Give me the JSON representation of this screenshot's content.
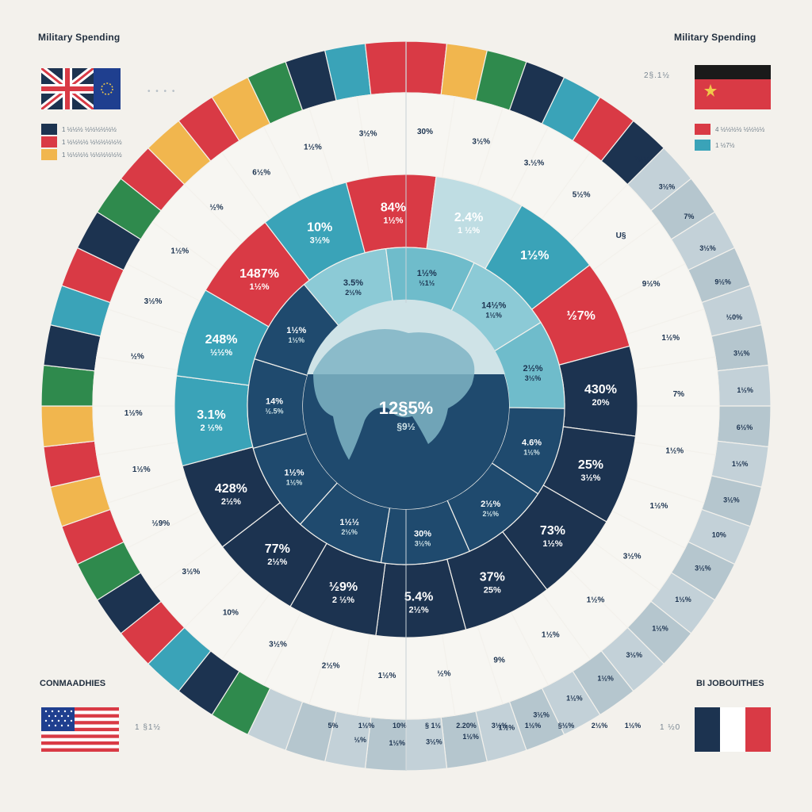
{
  "corners": {
    "title_left": "Military Spending",
    "title_right": "Military Spending",
    "year_right": "2§.1½",
    "caption_bottom_left": "CONMAADHIES",
    "caption_bottom_right": "BI JOBOUITHES",
    "value_bottom_left": "1 §1½",
    "value_bottom_right": "1 ½0",
    "legend_left": [
      "1 ½½½ ½½½½½½",
      "1 ½½½½ ½½½½½½",
      "1 ½½½½ ½½½½½½"
    ],
    "legend_right": [
      "4 ½½½½ ½½½½",
      "1 ½7½"
    ]
  },
  "colors": {
    "navy": "#1c3350",
    "teal": "#3aa3b8",
    "red": "#d93a45",
    "light_teal": "#bfdde3",
    "gray_blue": "#b9cbd3",
    "yellow": "#f1b64e",
    "green": "#2f8a4d",
    "orange": "#e86b3c"
  },
  "chart_data": {
    "type": "pie",
    "title": "",
    "center": {
      "value": "12§5%",
      "sub": "§9½"
    },
    "inner_ring": [
      {
        "label": "3.5%",
        "sub": "2½%"
      },
      {
        "label": "1½%",
        "sub": "½1½"
      },
      {
        "label": "14½%",
        "sub": "1½%"
      },
      {
        "label": "2½%",
        "sub": "3½%"
      },
      {
        "label": "4.6%",
        "sub": "1½%"
      },
      {
        "label": "2½%",
        "sub": "2½%"
      },
      {
        "label": "30%",
        "sub": "3½%"
      },
      {
        "label": "1½½",
        "sub": "2½%"
      },
      {
        "label": "1½%",
        "sub": "1½%"
      },
      {
        "label": "14%",
        "sub": "½.5%"
      },
      {
        "label": "1½%",
        "sub": "1½%"
      }
    ],
    "middle_ring": [
      {
        "label": "1487%",
        "sub": "1½%"
      },
      {
        "label": "10%",
        "sub": "3½%"
      },
      {
        "label": "84%",
        "sub": "1½%"
      },
      {
        "label": "2.4%",
        "sub": "1 ½%"
      },
      {
        "label": "1½%",
        "sub": ""
      },
      {
        "label": "½7%",
        "sub": ""
      },
      {
        "label": "430%",
        "sub": "20%"
      },
      {
        "label": "25%",
        "sub": "3½%"
      },
      {
        "label": "73%",
        "sub": "1½%"
      },
      {
        "label": "37%",
        "sub": "25%"
      },
      {
        "label": "5.4%",
        "sub": "2½%"
      },
      {
        "label": "½9%",
        "sub": "2 ½%"
      },
      {
        "label": "77%",
        "sub": "2½%"
      },
      {
        "label": "428%",
        "sub": "2½%"
      },
      {
        "label": "3.1%",
        "sub": "2 ½%"
      },
      {
        "label": "248%",
        "sub": "½½%"
      }
    ],
    "outer_labels": [
      "30%",
      "3½%",
      "3.½%",
      "5½%",
      "U§",
      "9½%",
      "1½%",
      "7%",
      "1½%",
      "1½%",
      "3½%",
      "1½%",
      "1½%",
      "9%",
      "½%",
      "1½%",
      "2½%",
      "3½%",
      "10%",
      "3½%",
      "½9%",
      "1½%",
      "1½%",
      "½%",
      "3½%",
      "1½%",
      "½%",
      "6½%",
      "1½%",
      "3½%"
    ],
    "rim_labels": [
      "2½%",
      "3½%",
      "7%",
      "3½%",
      "9½%",
      "½0%",
      "3½%",
      "1½%",
      "6½%",
      "1½%",
      "3½%",
      "10%",
      "3½%",
      "1½%",
      "1½%",
      "3½%",
      "1½%",
      "1½%",
      "3½%",
      "1½%",
      "1½%",
      "3½%",
      "1½%",
      "½%"
    ],
    "bottom_values": [
      "5%",
      "1½%",
      "10%",
      "§ 1½",
      "2.20%",
      "3½%",
      "1½%",
      "§½%",
      "2½%",
      "1½%"
    ]
  }
}
